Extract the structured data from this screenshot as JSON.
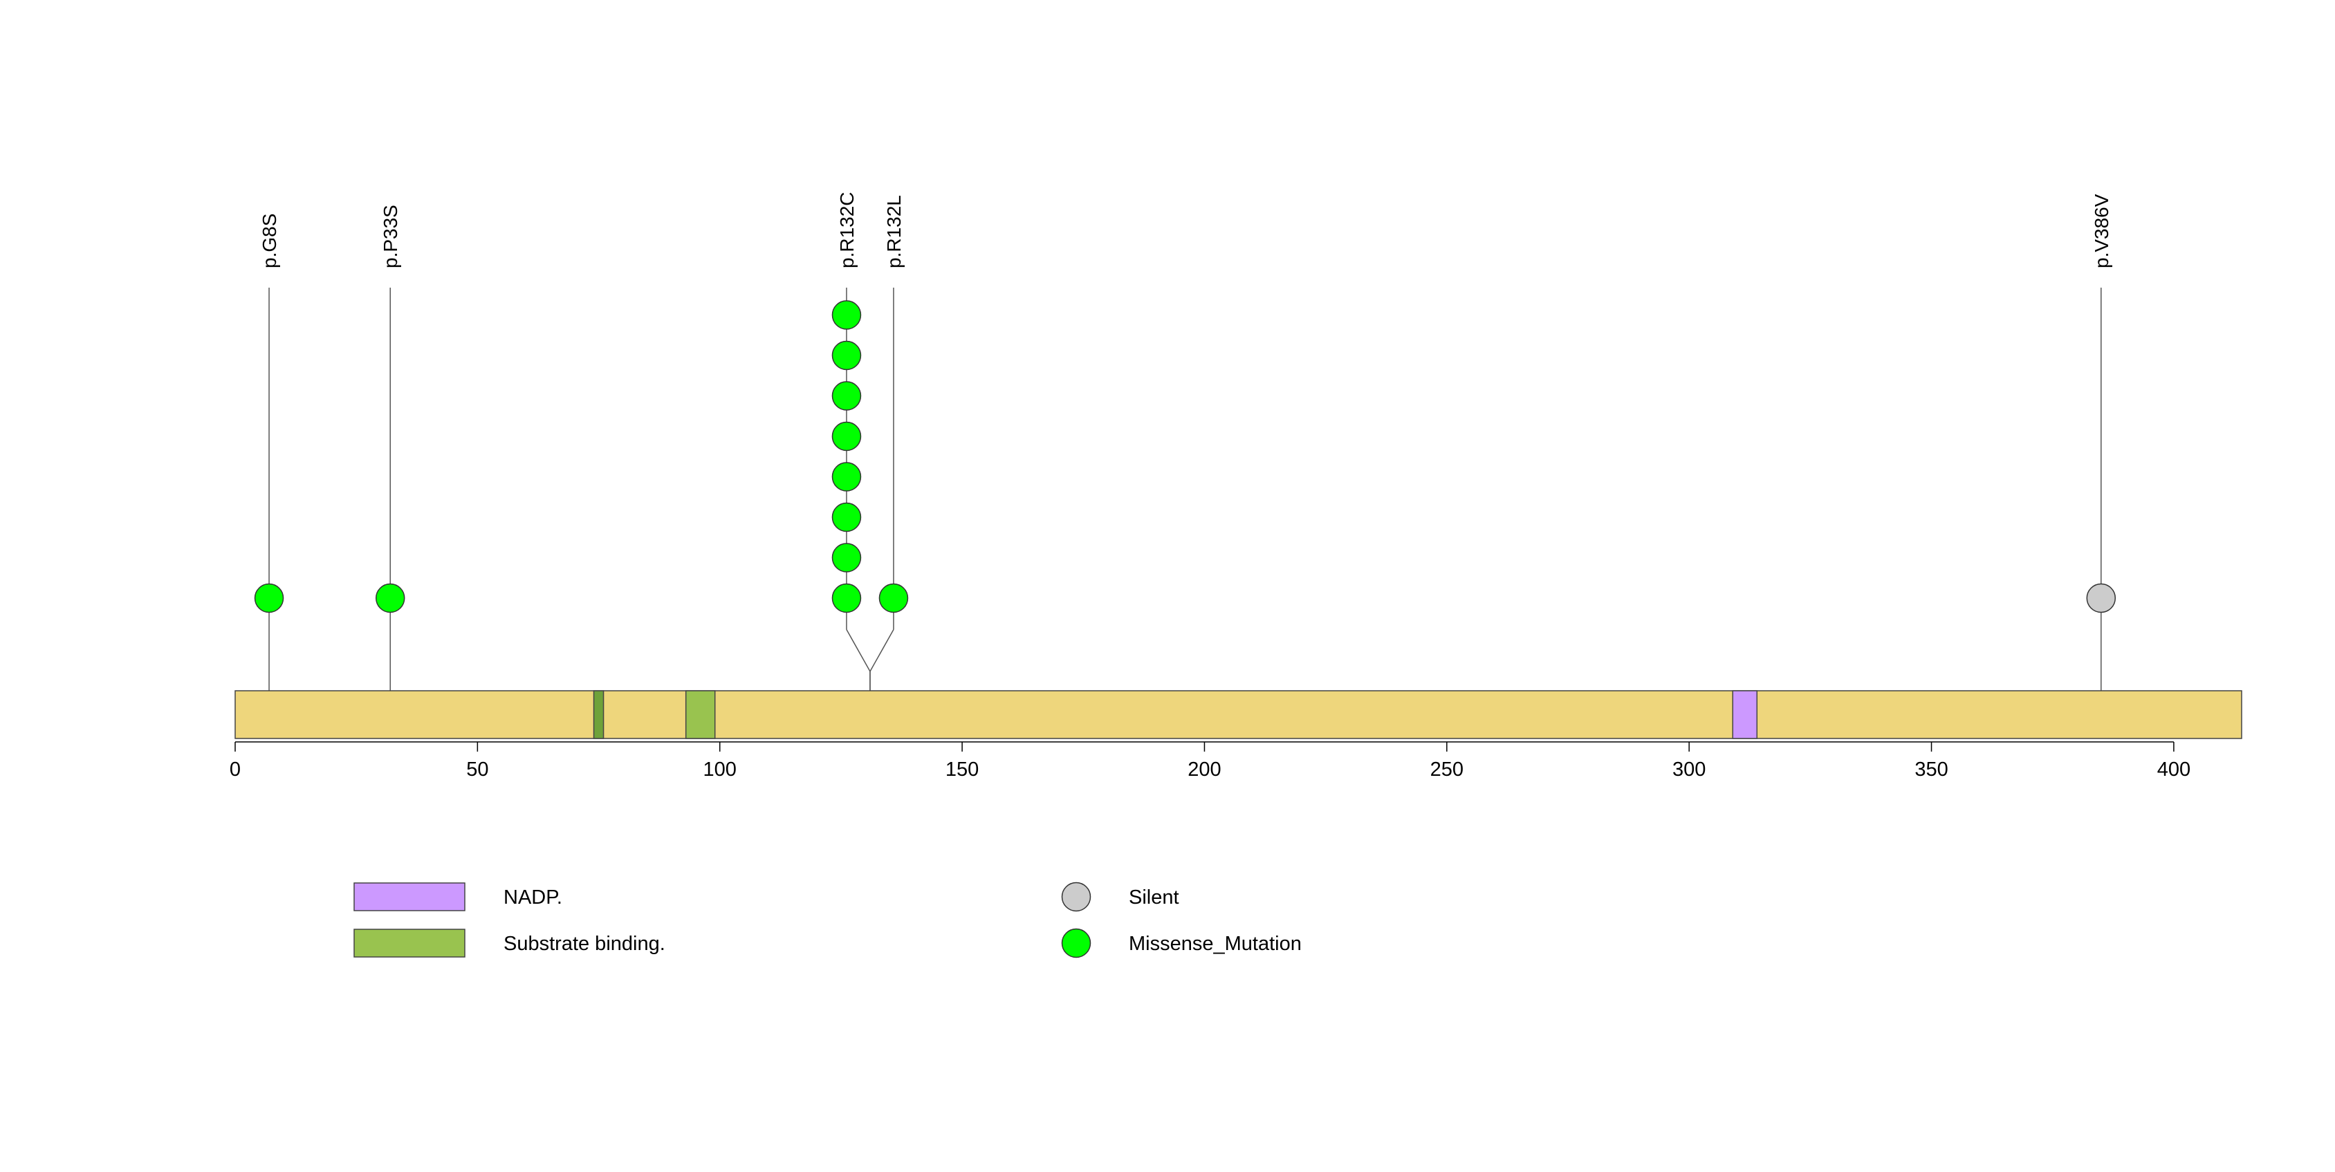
{
  "chart_data": {
    "type": "lollipop",
    "title": "",
    "xlabel": "",
    "ylabel": "",
    "x_range": [
      0,
      414
    ],
    "protein_length": 414,
    "x_ticks": [
      0,
      50,
      100,
      150,
      200,
      250,
      300,
      350,
      400
    ],
    "x_tick_labels": [
      "0",
      "50",
      "100",
      "150",
      "200",
      "250",
      "300",
      "350",
      "400"
    ],
    "domains": [
      {
        "name": "Substrate binding.",
        "start": 74,
        "end": 76
      },
      {
        "name": "Substrate binding.",
        "start": 93,
        "end": 99
      },
      {
        "name": "NADP.",
        "start": 309,
        "end": 314
      }
    ],
    "mutations": [
      {
        "label": "p.G8S",
        "position": 7,
        "count": 1,
        "type": "Missense_Mutation"
      },
      {
        "label": "p.P33S",
        "position": 32,
        "count": 1,
        "type": "Missense_Mutation"
      },
      {
        "label": "p.R132C",
        "position": 131,
        "count": 8,
        "type": "Missense_Mutation"
      },
      {
        "label": "p.R132L",
        "position": 131,
        "count": 1,
        "type": "Missense_Mutation"
      },
      {
        "label": "p.V386V",
        "position": 385,
        "count": 1,
        "type": "Silent"
      }
    ],
    "legend": {
      "domains": [
        {
          "name": "NADP.",
          "color": "#cc99ff"
        },
        {
          "name": "Substrate binding.",
          "color": "#99c34f"
        }
      ],
      "mutation_types": [
        {
          "name": "Silent",
          "color": "#cccccc"
        },
        {
          "name": "Missense_Mutation",
          "color": "#00ff00"
        }
      ]
    }
  },
  "colors": {
    "protein_bar": "#eed67c",
    "substrate_binding": "#99c34f",
    "substrate_binding_dark": "#6fa23a",
    "nadp": "#cc99ff",
    "missense": "#00ff00",
    "silent": "#cccccc",
    "line": "#555555"
  }
}
